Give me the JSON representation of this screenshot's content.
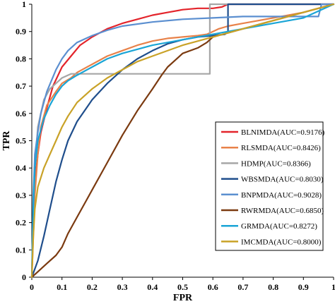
{
  "chart_data": {
    "type": "line",
    "xlabel": "FPR",
    "ylabel": "TPR",
    "xlim": [
      0,
      1
    ],
    "ylim": [
      0,
      1
    ],
    "xticks": [
      "0",
      "0.1",
      "0.2",
      "0.3",
      "0.4",
      "0.5",
      "0.6",
      "0.7",
      "0.8",
      "0.9",
      "1"
    ],
    "yticks": [
      "0",
      "0.1",
      "0.2",
      "0.3",
      "0.4",
      "0.5",
      "0.6",
      "0.7",
      "0.8",
      "0.9",
      "1"
    ],
    "grid": false,
    "legend_position": "center-right",
    "series": [
      {
        "name": "BLNIMDA(AUC=0.9176)",
        "color": "#e3242b",
        "x": [
          0,
          0.005,
          0.01,
          0.02,
          0.03,
          0.05,
          0.07,
          0.1,
          0.13,
          0.16,
          0.2,
          0.25,
          0.3,
          0.35,
          0.4,
          0.45,
          0.5,
          0.55,
          0.6,
          0.63,
          0.65,
          1.0
        ],
        "y": [
          0,
          0.2,
          0.35,
          0.45,
          0.53,
          0.62,
          0.7,
          0.77,
          0.81,
          0.85,
          0.88,
          0.91,
          0.93,
          0.945,
          0.96,
          0.97,
          0.98,
          0.985,
          0.985,
          0.99,
          1.0,
          1.0
        ]
      },
      {
        "name": "RLSMDA(AUC=0.8426)",
        "color": "#e8824a",
        "x": [
          0,
          0.005,
          0.01,
          0.02,
          0.03,
          0.05,
          0.08,
          0.1,
          0.13,
          0.15,
          0.2,
          0.25,
          0.3,
          0.35,
          0.4,
          0.45,
          0.5,
          0.55,
          0.58,
          0.6,
          0.62,
          0.65,
          0.7,
          0.8,
          0.9,
          1.0
        ],
        "y": [
          0,
          0.15,
          0.3,
          0.45,
          0.55,
          0.63,
          0.68,
          0.71,
          0.73,
          0.75,
          0.78,
          0.81,
          0.83,
          0.85,
          0.865,
          0.875,
          0.88,
          0.885,
          0.89,
          0.9,
          0.91,
          0.92,
          0.93,
          0.95,
          0.97,
          1.0
        ]
      },
      {
        "name": "HDMP(AUC=0.8366)",
        "color": "#a6a6a6",
        "x": [
          0,
          0.005,
          0.01,
          0.02,
          0.04,
          0.06,
          0.08,
          0.1,
          0.12,
          0.13,
          0.59,
          0.59,
          1.0
        ],
        "y": [
          0,
          0.25,
          0.4,
          0.55,
          0.65,
          0.69,
          0.71,
          0.73,
          0.74,
          0.745,
          0.745,
          1.0,
          1.0
        ]
      },
      {
        "name": "WBSMDA(AUC=0.8030)",
        "color": "#1f4e8c",
        "x": [
          0,
          0.02,
          0.04,
          0.06,
          0.08,
          0.1,
          0.12,
          0.15,
          0.2,
          0.25,
          0.3,
          0.35,
          0.4,
          0.45,
          0.5,
          0.55,
          0.6,
          0.64,
          0.65,
          0.65,
          0.7,
          0.8,
          0.9,
          1.0
        ],
        "y": [
          0,
          0.06,
          0.15,
          0.25,
          0.35,
          0.43,
          0.5,
          0.57,
          0.65,
          0.71,
          0.76,
          0.8,
          0.83,
          0.855,
          0.87,
          0.88,
          0.885,
          0.89,
          0.9,
          1.0,
          1.0,
          1.0,
          1.0,
          1.0
        ]
      },
      {
        "name": "BNPMDA(AUC=0.9028)",
        "color": "#5b8fd0",
        "x": [
          0,
          0.005,
          0.01,
          0.02,
          0.03,
          0.05,
          0.08,
          0.1,
          0.12,
          0.15,
          0.2,
          0.25,
          0.3,
          0.4,
          0.5,
          0.6,
          0.7,
          0.8,
          0.9,
          0.95,
          0.96,
          1.0
        ],
        "y": [
          0,
          0.3,
          0.45,
          0.53,
          0.6,
          0.68,
          0.76,
          0.8,
          0.83,
          0.86,
          0.885,
          0.905,
          0.92,
          0.935,
          0.945,
          0.95,
          0.955,
          0.955,
          0.955,
          0.955,
          1.0,
          1.0
        ]
      },
      {
        "name": "RWRMDA(AUC=0.6850)",
        "color": "#7b3a10",
        "x": [
          0,
          0.02,
          0.05,
          0.08,
          0.1,
          0.12,
          0.15,
          0.18,
          0.2,
          0.25,
          0.3,
          0.35,
          0.4,
          0.43,
          0.45,
          0.48,
          0.5,
          0.55,
          0.58,
          0.6,
          0.7,
          0.8,
          0.9,
          1.0
        ],
        "y": [
          0,
          0.02,
          0.05,
          0.08,
          0.11,
          0.16,
          0.22,
          0.28,
          0.32,
          0.42,
          0.52,
          0.61,
          0.69,
          0.74,
          0.77,
          0.8,
          0.82,
          0.84,
          0.86,
          0.88,
          0.91,
          0.94,
          0.97,
          1.0
        ]
      },
      {
        "name": "GRMDA(AUC=0.8272)",
        "color": "#1aa5d6",
        "x": [
          0,
          0.005,
          0.01,
          0.02,
          0.04,
          0.06,
          0.08,
          0.1,
          0.12,
          0.15,
          0.2,
          0.25,
          0.3,
          0.4,
          0.5,
          0.6,
          0.7,
          0.8,
          0.9,
          1.0
        ],
        "y": [
          0,
          0.25,
          0.4,
          0.5,
          0.58,
          0.63,
          0.67,
          0.7,
          0.72,
          0.74,
          0.77,
          0.8,
          0.82,
          0.85,
          0.87,
          0.89,
          0.91,
          0.93,
          0.95,
          1.0
        ]
      },
      {
        "name": "IMCMDA(AUC=0.8000)",
        "color": "#c9a227",
        "x": [
          0,
          0.005,
          0.01,
          0.02,
          0.04,
          0.06,
          0.08,
          0.1,
          0.12,
          0.15,
          0.18,
          0.2,
          0.25,
          0.3,
          0.35,
          0.4,
          0.5,
          0.6,
          0.7,
          0.8,
          0.9,
          1.0
        ],
        "y": [
          0,
          0.15,
          0.25,
          0.33,
          0.4,
          0.45,
          0.5,
          0.55,
          0.59,
          0.64,
          0.67,
          0.69,
          0.73,
          0.76,
          0.79,
          0.81,
          0.85,
          0.88,
          0.91,
          0.94,
          0.97,
          1.0
        ]
      }
    ]
  }
}
